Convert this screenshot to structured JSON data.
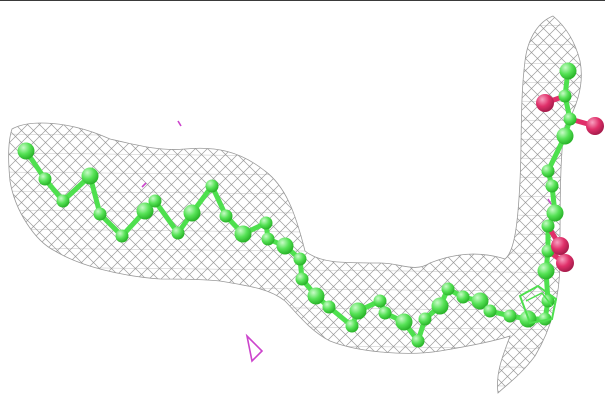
{
  "image": {
    "subject": "molecular-electron-density-render",
    "colors": {
      "background": "#ffffff",
      "mesh": "#8e8e8e",
      "carbon": "#4ee04e",
      "carbon_highlight": "#b6f7b6",
      "oxygen": "#e0306a",
      "stray_density": "#cc44cc",
      "frame": "#3a3a3a"
    }
  }
}
